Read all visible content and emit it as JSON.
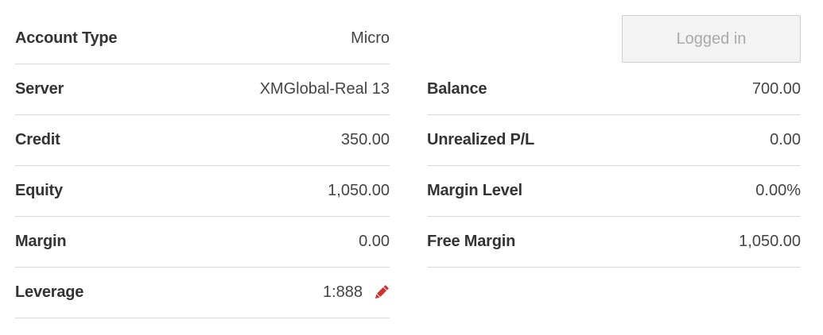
{
  "left_rows": [
    {
      "label": "Account Type",
      "value": "Micro"
    },
    {
      "label": "Server",
      "value": "XMGlobal-Real 13"
    },
    {
      "label": "Credit",
      "value": "350.00"
    },
    {
      "label": "Equity",
      "value": "1,050.00"
    },
    {
      "label": "Margin",
      "value": "0.00"
    },
    {
      "label": "Leverage",
      "value": "1:888"
    }
  ],
  "right_rows": [
    {
      "label": "Balance",
      "value": "700.00"
    },
    {
      "label": "Unrealized P/L",
      "value": "0.00"
    },
    {
      "label": "Margin Level",
      "value": "0.00%"
    },
    {
      "label": "Free Margin",
      "value": "1,050.00"
    }
  ],
  "status_button": {
    "label": "Logged in"
  },
  "icons": {
    "leverage_edit": "pencil-icon"
  },
  "colors": {
    "accent": "#d32f2f",
    "label": "#333333",
    "divider": "#d9d9d9"
  }
}
